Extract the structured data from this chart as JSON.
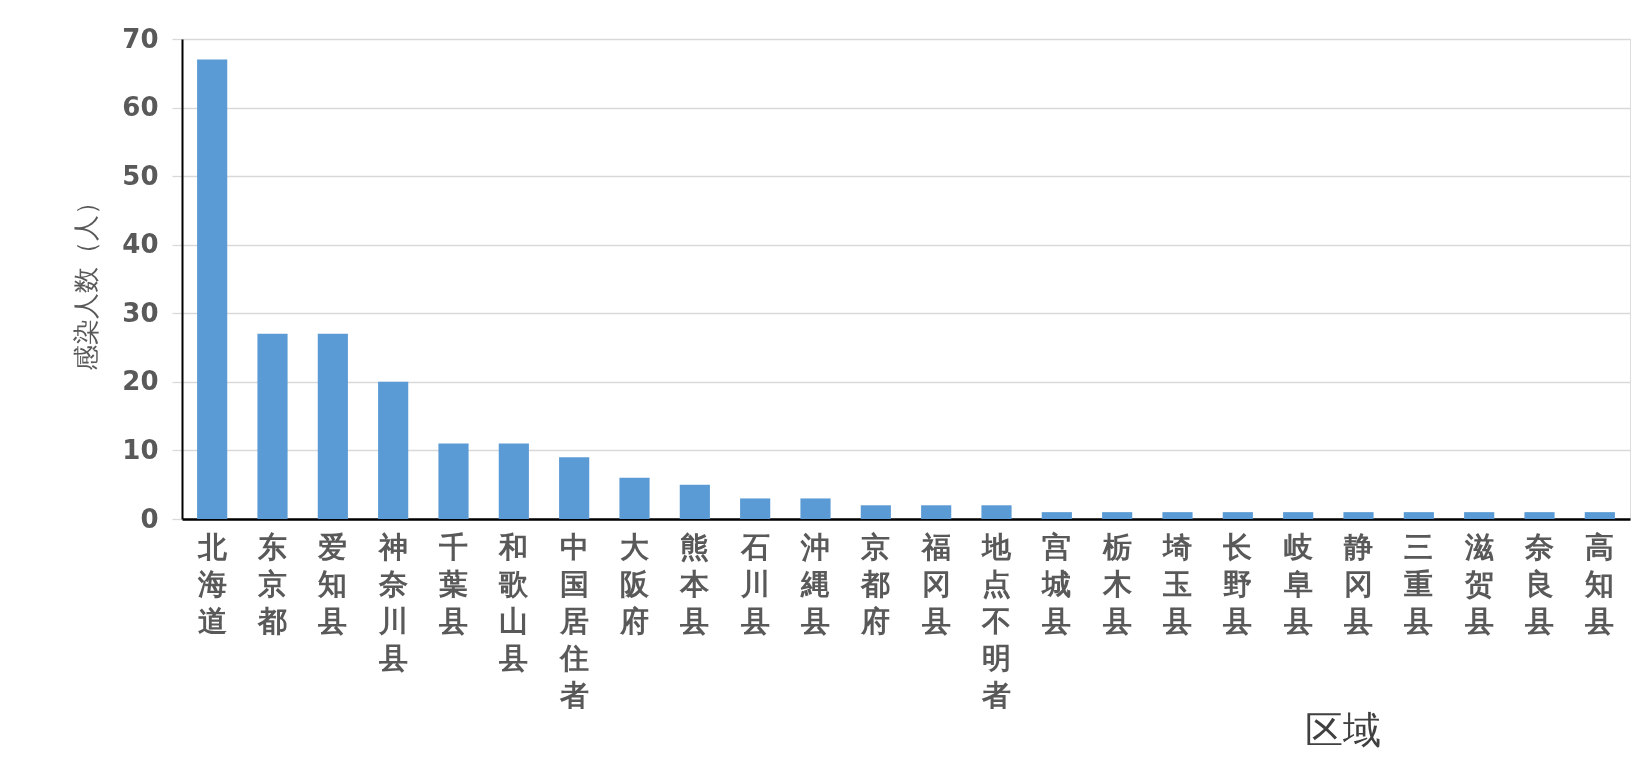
{
  "chart_data": {
    "type": "bar",
    "xlabel": "区域",
    "ylabel": "感染人数（人）",
    "categories": [
      "北海道",
      "东京都",
      "爱知县",
      "神奈川县",
      "千葉县",
      "和歌山县",
      "中国居住者",
      "大阪府",
      "熊本县",
      "石川县",
      "沖縄县",
      "京都府",
      "福冈县",
      "地点不明者",
      "宫城县",
      "栃木县",
      "埼玉县",
      "长野县",
      "岐阜县",
      "静冈县",
      "三重县",
      "滋贺县",
      "奈良县",
      "高知县"
    ],
    "values": [
      67,
      27,
      27,
      20,
      11,
      11,
      9,
      6,
      5,
      3,
      3,
      2,
      2,
      2,
      1,
      1,
      1,
      1,
      1,
      1,
      1,
      1,
      1,
      1
    ],
    "color": "#5b9bd5",
    "ylim": [
      0,
      70
    ],
    "yticks": [
      0,
      10,
      20,
      30,
      40,
      50,
      60,
      70
    ],
    "grid": "y"
  }
}
